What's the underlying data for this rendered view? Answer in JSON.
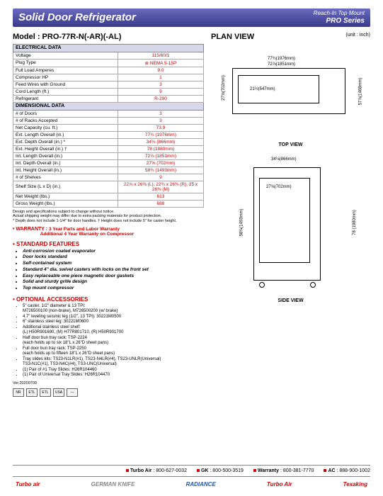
{
  "header": {
    "title": "Solid Door Refrigerator",
    "subtitle1": "Reach-In Top Mount",
    "subtitle2": "PRO Series"
  },
  "model": "Model : PRO-77R-N(-AR)(-AL)",
  "plan_view": "PLAN VIEW",
  "unit": "(unit : inch)",
  "spec_sections": [
    {
      "header": "ELECTRICAL DATA",
      "rows": [
        [
          "Voltage",
          "115/60/1"
        ],
        [
          "Plug Type",
          "⊕ NEMA 5-15P"
        ],
        [
          "Full Load Amperes",
          "9.0"
        ],
        [
          "Compressor HP",
          "1"
        ],
        [
          "Feed Wires with Ground",
          "3"
        ],
        [
          "Cord Length (ft.)",
          "9"
        ],
        [
          "Refrigerant",
          "R-290"
        ]
      ]
    },
    {
      "header": "DIMENSIONAL DATA",
      "rows": [
        [
          "# of Doors",
          "3"
        ],
        [
          "# of Racks Accepted",
          "3"
        ],
        [
          "Net Capacity (cu. ft.)",
          "73.9"
        ],
        [
          "Ext. Length Overall (in.)",
          "77¾ (1976mm)"
        ],
        [
          "Ext. Depth Overall (in.) *",
          "34⅛ (866mm)"
        ],
        [
          "Ext. Height Overall (in.) †",
          "78 (1980mm)"
        ],
        [
          "Int. Length Overall (in.)",
          "72⅞ (1851mm)"
        ],
        [
          "Int. Depth Overall (in.)",
          "27⅝ (702mm)"
        ],
        [
          "Int. Height Overall (in.)",
          "58¾ (1493mm)"
        ],
        [
          "# of Shelves",
          "9"
        ],
        [
          "Shelf Size (L x D) (in.)",
          "22⅞ x 26⅜ (L), 22¾ x 26⅜ (R), 25 x 26⅜ (M)"
        ],
        [
          "Net Weight (lbs.)",
          "613"
        ],
        [
          "Gross Weight (lbs.)",
          "688"
        ]
      ]
    }
  ],
  "fine_print": "Design and specifications subject to change without notice.\nActual shipping weight may differ due to extra packing materials for product protection.\n* Depth does not include 1-1/4\" for door handles. † Height does not include 5\" for caster height.",
  "warranty": {
    "label": "• WARRANTY :",
    "line1": "3 Year Parts and Labor Warranty",
    "line2": "Additional 4 Year Warranty on Compressor"
  },
  "features": {
    "header": "• STANDARD FEATURES",
    "items": [
      "Anti-corrosion coated evaporator",
      "Door locks standard",
      "Self-contained system",
      "Standard 4\" dia. swivel casters with locks on the front set",
      "Easy replaceable one piece magnetic door gaskets",
      "Solid and sturdy grille design",
      "Top mount compressor"
    ]
  },
  "accessories": {
    "header": "• OPTIONAL ACCESSORIES",
    "items": [
      "5\" caster, 1/2\" diameter & 13 TPI:\nM726500100 (non-brake), M726500200 (w/ brake)",
      "4.7\" leveling seismic leg (1/2\", 13 TPI): 30221M0500",
      "6\" stainless steel leg: 30221M0600",
      "Additional stainless steel shelf:\n(L) H50R901690, (M) H77R801710, (R) H50R901700",
      "Half door bun tray rack: TSP-2224\n(each holds up to six 18\"L x 26\"D sheet pans)",
      "Full door bun tray rack: TSP-2250\n(each holds up to fifteen 18\"L x 26\"D sheet pans)",
      "Tray slides kits: TS23-N1LR(#1), TS23-N4LR(#4), TS23-UNLR(Universal)\nTS3-N1C(#1), TS3-N4C(#4), TS3-UNC(Universal)",
      "(1) Pair of #1 Tray Slides: H26R104460",
      "(1) Pair of Universal Tray Slides: H26R104470"
    ]
  },
  "version": "Ver.20200709",
  "diagrams": {
    "top": {
      "w1": "77¾(1976mm)",
      "w2": "72⅞(1851mm)",
      "h1": "27⅝(702mm)",
      "h2": "21½(547mm)",
      "d": "57⅞(1468mm)",
      "caption": "TOP VIEW"
    },
    "side": {
      "w": "34⅛(866mm)",
      "wi": "27⅝(702mm)",
      "h": "78 (1980mm)",
      "hi": "58¾(1493mm)",
      "caption": "SIDE VIEW"
    }
  },
  "contacts": [
    {
      "label": "Turbo Air",
      "num": "800-627-0032"
    },
    {
      "label": "GK",
      "num": "800-500-3519"
    },
    {
      "label": "Warranty",
      "num": "800-381-7770"
    },
    {
      "label": "AC",
      "num": "888-900-1002"
    }
  ],
  "logos": [
    "Turbo air",
    "GERMAN KNIFE",
    "RADIANCE",
    "Turbo Air",
    "Texaking"
  ],
  "certs": [
    "NR",
    "ETL",
    "ETL",
    "USA",
    "—"
  ]
}
